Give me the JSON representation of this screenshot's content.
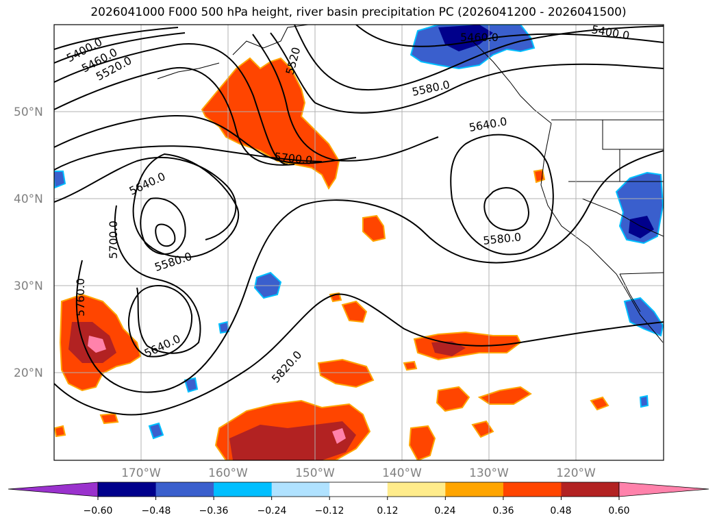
{
  "title": "2026041000 F000 500 hPa height, river basin precipitation PC (2026041200 - 2026041500)",
  "lat_labels": [
    "50°N",
    "40°N",
    "30°N",
    "20°N"
  ],
  "lon_labels": [
    "170°W",
    "160°W",
    "150°W",
    "140°W",
    "130°W",
    "120°W"
  ],
  "contour_labels": [
    "5400.0",
    "5460.0",
    "5520.0",
    "5520",
    "5460.0",
    "5400.0",
    "5580.0",
    "5640.0",
    "5700.0",
    "5640.0",
    "5700.0",
    "5580.0",
    "5580.0",
    "5760.0",
    "5640.0",
    "5820.0"
  ],
  "colorbar": {
    "ticks": [
      "−0.60",
      "−0.48",
      "−0.36",
      "−0.24",
      "−0.12",
      "0.12",
      "0.24",
      "0.36",
      "0.48",
      "0.60"
    ],
    "colors": [
      "#9a32cd",
      "#00008b",
      "#3a5fcd",
      "#00bfff",
      "#b0e2ff",
      "#ffffff",
      "#ffec8b",
      "#ffa500",
      "#ff4500",
      "#b22222",
      "#ff82ab"
    ]
  },
  "colors": {
    "land_coast": "#000000",
    "grid": "#b0b0b0",
    "contour": "#000000"
  }
}
